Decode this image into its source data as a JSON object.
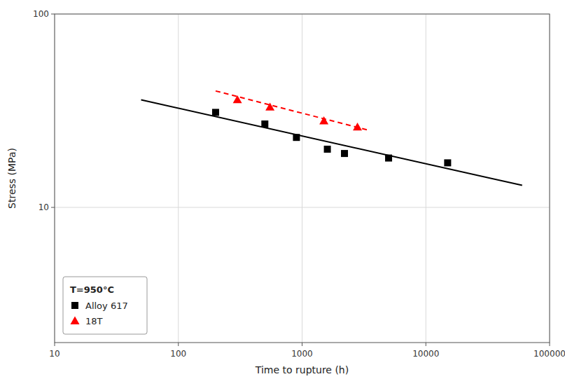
{
  "chart_data": {
    "type": "scatter",
    "x_label": "Time to rupture (h)",
    "y_label": "Stress (MPa)",
    "log": true,
    "xlim": [
      10,
      100000
    ],
    "ylim": [
      2,
      100
    ],
    "xticks": [
      10,
      100,
      1000,
      10000,
      100000
    ],
    "yticks": [
      10,
      100
    ],
    "grid": true,
    "legend": "lower left",
    "legend_title": "T=950°C",
    "series": [
      {
        "name": "Alloy 617",
        "type": "scatter",
        "marker": "square",
        "color": "#000000",
        "x": [
          200,
          500,
          900,
          1600,
          2200,
          5000,
          15000
        ],
        "values": [
          31,
          27,
          23,
          20,
          19,
          18,
          17
        ]
      },
      {
        "name": "18T",
        "type": "scatter",
        "marker": "triangle",
        "color": "#FF0000",
        "x": [
          300,
          550,
          1500,
          2800
        ],
        "values": [
          36,
          33,
          28,
          26
        ]
      },
      {
        "type": "line",
        "line_style": "solid",
        "color": "#000000",
        "x": [
          50,
          60000
        ],
        "values": [
          36,
          13
        ]
      },
      {
        "type": "line",
        "line_style": "dashed",
        "color": "#FF0000",
        "x": [
          200,
          3500
        ],
        "values": [
          40,
          25
        ]
      }
    ]
  }
}
